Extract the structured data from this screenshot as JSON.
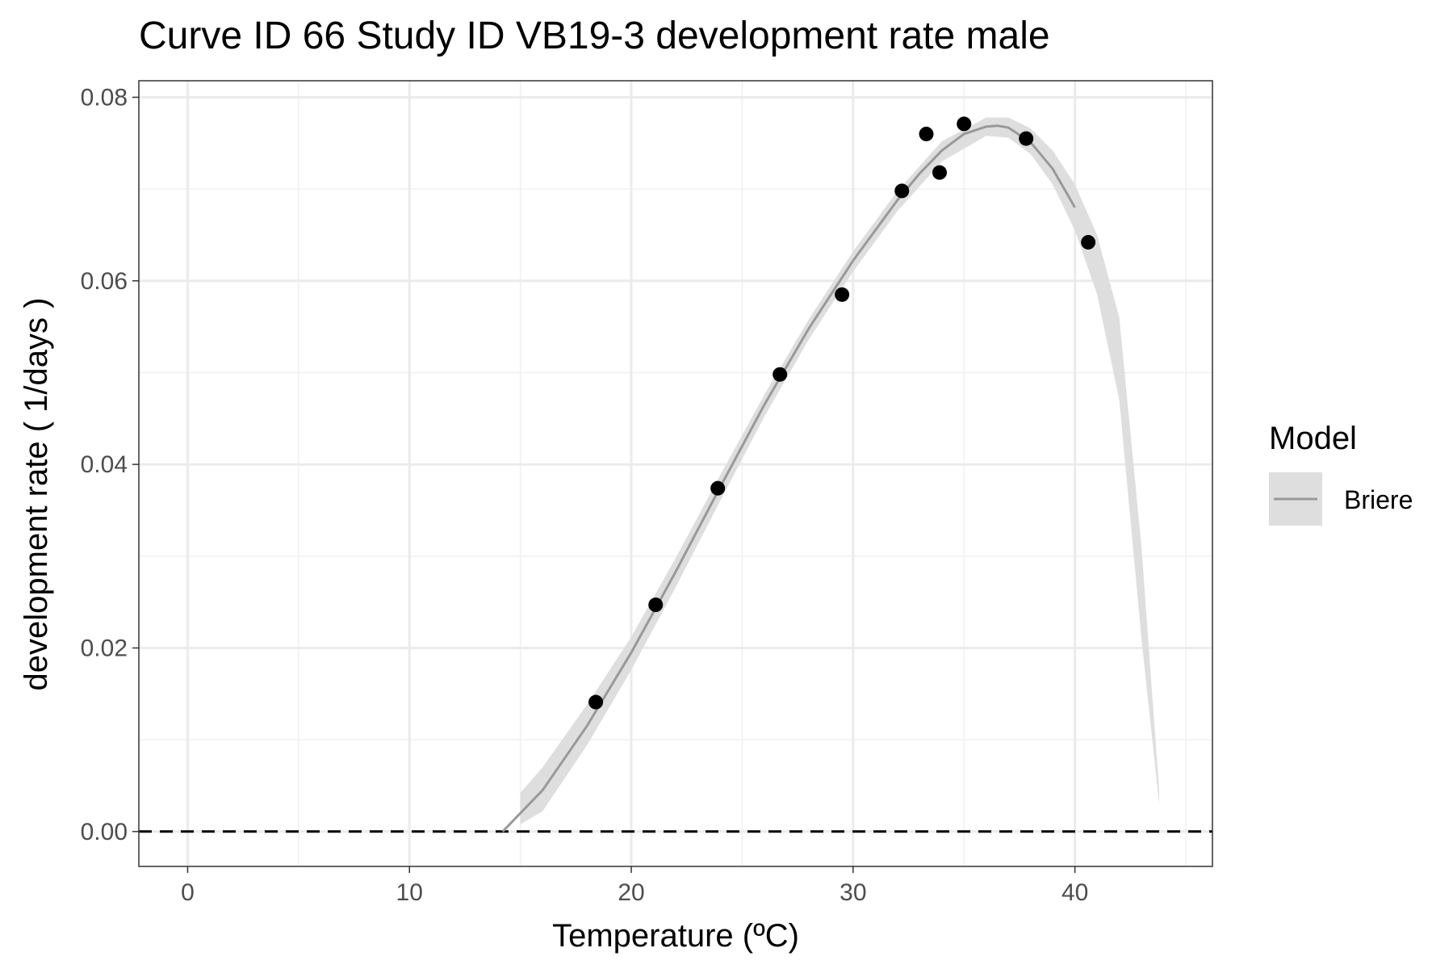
{
  "chart_data": {
    "type": "scatter",
    "title": "Curve ID 66 Study ID VB19-3 development rate male",
    "xlabel": "Temperature (ºC)",
    "ylabel": "development rate ( 1/days )",
    "xlim": [
      -2.2,
      46.2
    ],
    "ylim": [
      -0.0038,
      0.0818
    ],
    "x_ticks": [
      0,
      10,
      20,
      30,
      40
    ],
    "x_tick_labels": [
      "0",
      "10",
      "20",
      "30",
      "40"
    ],
    "y_ticks": [
      0,
      0.02,
      0.04,
      0.06,
      0.08
    ],
    "y_tick_labels": [
      "0.00",
      "0.02",
      "0.04",
      "0.06",
      "0.08"
    ],
    "grid": true,
    "reference_line": {
      "y": 0,
      "style": "dashed"
    },
    "points": [
      {
        "x": 18.4,
        "y": 0.0141
      },
      {
        "x": 21.1,
        "y": 0.0247
      },
      {
        "x": 23.9,
        "y": 0.0374
      },
      {
        "x": 26.7,
        "y": 0.0498
      },
      {
        "x": 29.5,
        "y": 0.0585
      },
      {
        "x": 32.2,
        "y": 0.0698
      },
      {
        "x": 33.3,
        "y": 0.076
      },
      {
        "x": 33.9,
        "y": 0.0718
      },
      {
        "x": 35.0,
        "y": 0.0771
      },
      {
        "x": 37.8,
        "y": 0.0755
      },
      {
        "x": 40.6,
        "y": 0.0642
      }
    ],
    "series": [
      {
        "name": "Briere",
        "color": "#999999",
        "x": [
          14.2,
          16,
          18,
          20,
          22,
          24,
          26,
          28,
          30,
          32,
          33,
          34,
          35,
          36,
          36.5,
          37,
          38,
          39,
          40
        ],
        "y": [
          0.0,
          0.0045,
          0.0115,
          0.0195,
          0.0283,
          0.0375,
          0.0465,
          0.0548,
          0.0622,
          0.0688,
          0.0717,
          0.0742,
          0.076,
          0.0768,
          0.0769,
          0.0767,
          0.0751,
          0.0722,
          0.068
        ]
      }
    ],
    "band": {
      "color": "#dedede",
      "x": [
        15.0,
        16,
        18,
        20,
        22,
        24,
        26,
        28,
        30,
        32,
        34,
        36,
        37,
        38,
        39,
        40,
        41,
        42,
        43,
        43.8
      ],
      "upper": [
        0.0042,
        0.007,
        0.0138,
        0.0212,
        0.0298,
        0.0388,
        0.0476,
        0.0558,
        0.0632,
        0.0698,
        0.0752,
        0.0778,
        0.0778,
        0.0766,
        0.0742,
        0.0705,
        0.065,
        0.056,
        0.031,
        0.0045
      ],
      "lower": [
        0.0008,
        0.0022,
        0.0094,
        0.0176,
        0.0266,
        0.036,
        0.0452,
        0.0536,
        0.061,
        0.0676,
        0.073,
        0.0758,
        0.0756,
        0.0738,
        0.0705,
        0.0655,
        0.0585,
        0.047,
        0.021,
        0.003
      ]
    },
    "legend": {
      "title": "Model",
      "position": "right",
      "entries": [
        {
          "label": "Briere",
          "color": "#999999"
        }
      ]
    }
  }
}
